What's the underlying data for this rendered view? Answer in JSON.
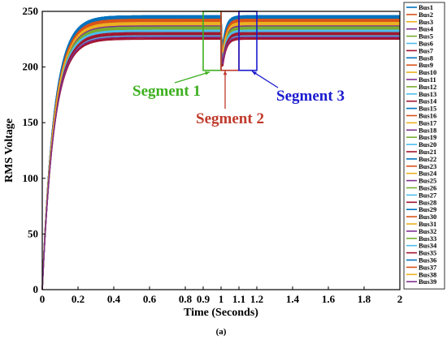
{
  "chart_data": {
    "type": "line",
    "caption": "(a)",
    "xlabel": "Time (Seconds)",
    "ylabel": "RMS Voltage",
    "xlim": [
      0,
      2
    ],
    "ylim": [
      0,
      250
    ],
    "xticks": [
      "0",
      "0.2",
      "0.4",
      "0.6",
      "0.8",
      "0.9",
      "1",
      "1.1",
      "1.2",
      "1.4",
      "1.6",
      "1.8",
      "2"
    ],
    "xtick_values": [
      0,
      0.2,
      0.4,
      0.6,
      0.8,
      0.9,
      1,
      1.1,
      1.2,
      1.4,
      1.6,
      1.8,
      2
    ],
    "yticks": [
      "0",
      "50",
      "100",
      "150",
      "200",
      "250"
    ],
    "ytick_values": [
      0,
      50,
      100,
      150,
      200,
      250
    ],
    "grid": false,
    "legend_position": "right",
    "rise_time_constant_s": 0.065,
    "disturbance_time_s": 1.0,
    "series": [
      {
        "name": "Bus1",
        "color": "#0072BD",
        "steady": 246,
        "dip": 214
      },
      {
        "name": "Bus2",
        "color": "#D95319",
        "steady": 243,
        "dip": 212
      },
      {
        "name": "Bus3",
        "color": "#EDB120",
        "steady": 240,
        "dip": 209
      },
      {
        "name": "Bus4",
        "color": "#7E2F8E",
        "steady": 236,
        "dip": 205
      },
      {
        "name": "Bus5",
        "color": "#77AC30",
        "steady": 232,
        "dip": 202
      },
      {
        "name": "Bus6",
        "color": "#4DBEEE",
        "steady": 229,
        "dip": 199
      },
      {
        "name": "Bus7",
        "color": "#A2142F",
        "steady": 226,
        "dip": 197
      },
      {
        "name": "Bus8",
        "color": "#0072BD",
        "steady": 245,
        "dip": 213
      },
      {
        "name": "Bus9",
        "color": "#D95319",
        "steady": 244,
        "dip": 212
      },
      {
        "name": "Bus10",
        "color": "#EDB120",
        "steady": 241,
        "dip": 210
      },
      {
        "name": "Bus11",
        "color": "#7E2F8E",
        "steady": 239,
        "dip": 208
      },
      {
        "name": "Bus12",
        "color": "#77AC30",
        "steady": 236,
        "dip": 206
      },
      {
        "name": "Bus13",
        "color": "#4DBEEE",
        "steady": 233,
        "dip": 203
      },
      {
        "name": "Bus14",
        "color": "#A2142F",
        "steady": 231,
        "dip": 201
      },
      {
        "name": "Bus15",
        "color": "#0072BD",
        "steady": 246,
        "dip": 215
      },
      {
        "name": "Bus16",
        "color": "#D95319",
        "steady": 242,
        "dip": 211
      },
      {
        "name": "Bus17",
        "color": "#EDB120",
        "steady": 238,
        "dip": 207
      },
      {
        "name": "Bus18",
        "color": "#7E2F8E",
        "steady": 234,
        "dip": 204
      },
      {
        "name": "Bus19",
        "color": "#77AC30",
        "steady": 230,
        "dip": 200
      },
      {
        "name": "Bus20",
        "color": "#4DBEEE",
        "steady": 228,
        "dip": 198
      },
      {
        "name": "Bus21",
        "color": "#A2142F",
        "steady": 225,
        "dip": 196
      },
      {
        "name": "Bus22",
        "color": "#0072BD",
        "steady": 245,
        "dip": 214
      },
      {
        "name": "Bus23",
        "color": "#D95319",
        "steady": 243,
        "dip": 211
      },
      {
        "name": "Bus24",
        "color": "#EDB120",
        "steady": 240,
        "dip": 209
      },
      {
        "name": "Bus25",
        "color": "#7E2F8E",
        "steady": 237,
        "dip": 206
      },
      {
        "name": "Bus26",
        "color": "#77AC30",
        "steady": 234,
        "dip": 204
      },
      {
        "name": "Bus27",
        "color": "#4DBEEE",
        "steady": 232,
        "dip": 202
      },
      {
        "name": "Bus28",
        "color": "#A2142F",
        "steady": 229,
        "dip": 199
      },
      {
        "name": "Bus29",
        "color": "#0072BD",
        "steady": 244,
        "dip": 213
      },
      {
        "name": "Bus30",
        "color": "#D95319",
        "steady": 242,
        "dip": 210
      },
      {
        "name": "Bus31",
        "color": "#EDB120",
        "steady": 239,
        "dip": 208
      },
      {
        "name": "Bus32",
        "color": "#7E2F8E",
        "steady": 237,
        "dip": 207
      },
      {
        "name": "Bus33",
        "color": "#77AC30",
        "steady": 235,
        "dip": 205
      },
      {
        "name": "Bus34",
        "color": "#4DBEEE",
        "steady": 233,
        "dip": 203
      },
      {
        "name": "Bus35",
        "color": "#A2142F",
        "steady": 230,
        "dip": 200
      },
      {
        "name": "Bus36",
        "color": "#0072BD",
        "steady": 246,
        "dip": 214
      },
      {
        "name": "Bus37",
        "color": "#D95319",
        "steady": 241,
        "dip": 210
      },
      {
        "name": "Bus38",
        "color": "#EDB120",
        "steady": 238,
        "dip": 208
      },
      {
        "name": "Bus39",
        "color": "#7E2F8E",
        "steady": 227,
        "dip": 198
      }
    ],
    "annotations": [
      {
        "label": "Segment 1",
        "color": "#3CB01E",
        "x_range": [
          0.9,
          1.0
        ],
        "y_range": [
          197,
          250
        ]
      },
      {
        "label": "Segment 2",
        "color": "#C0392B",
        "x_range": [
          1.0,
          1.1
        ],
        "y_range": [
          197,
          250
        ]
      },
      {
        "label": "Segment 3",
        "color": "#1A1ACF",
        "x_range": [
          1.1,
          1.2
        ],
        "y_range": [
          197,
          250
        ]
      }
    ]
  }
}
